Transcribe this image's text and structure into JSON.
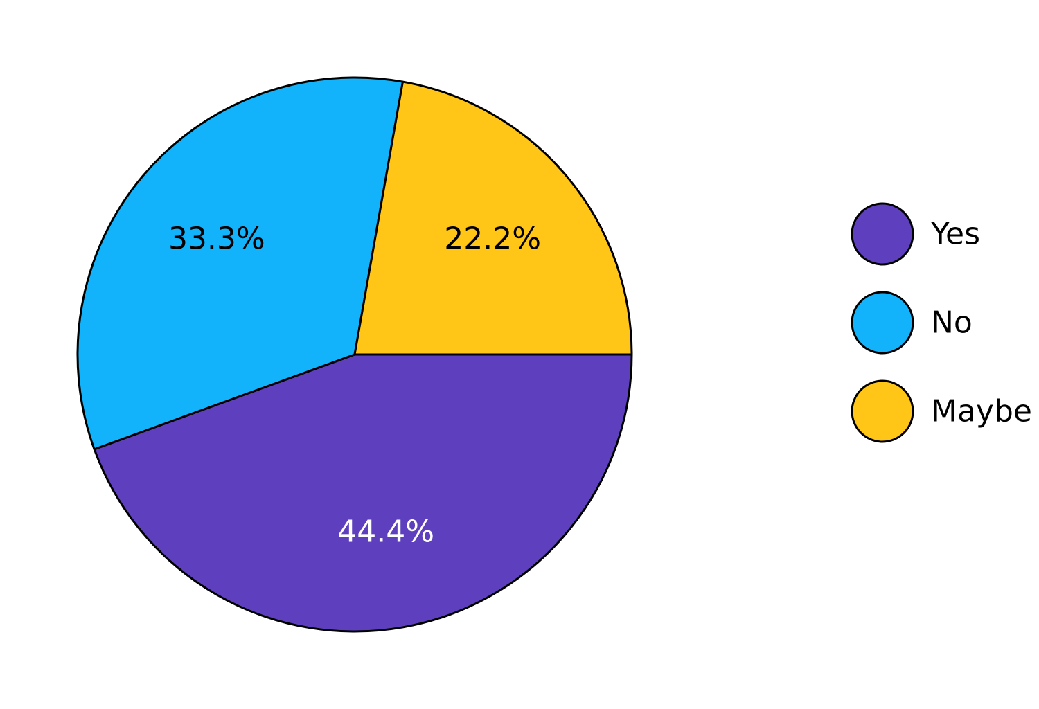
{
  "chart_data": {
    "type": "pie",
    "title": "",
    "categories": [
      "Yes",
      "No",
      "Maybe"
    ],
    "values": [
      44.4,
      33.3,
      22.2
    ],
    "labels": [
      "44.4%",
      "33.3%",
      "22.2%"
    ],
    "colors": [
      "#5E40BE",
      "#12B3FB",
      "#FFC517"
    ],
    "label_colors": [
      "#ffffff",
      "#000000",
      "#000000"
    ],
    "legend": {
      "placement": "right",
      "items": [
        {
          "label": "Yes",
          "color": "#5E40BE"
        },
        {
          "label": "No",
          "color": "#12B3FB"
        },
        {
          "label": "Maybe",
          "color": "#FFC517"
        }
      ]
    }
  }
}
